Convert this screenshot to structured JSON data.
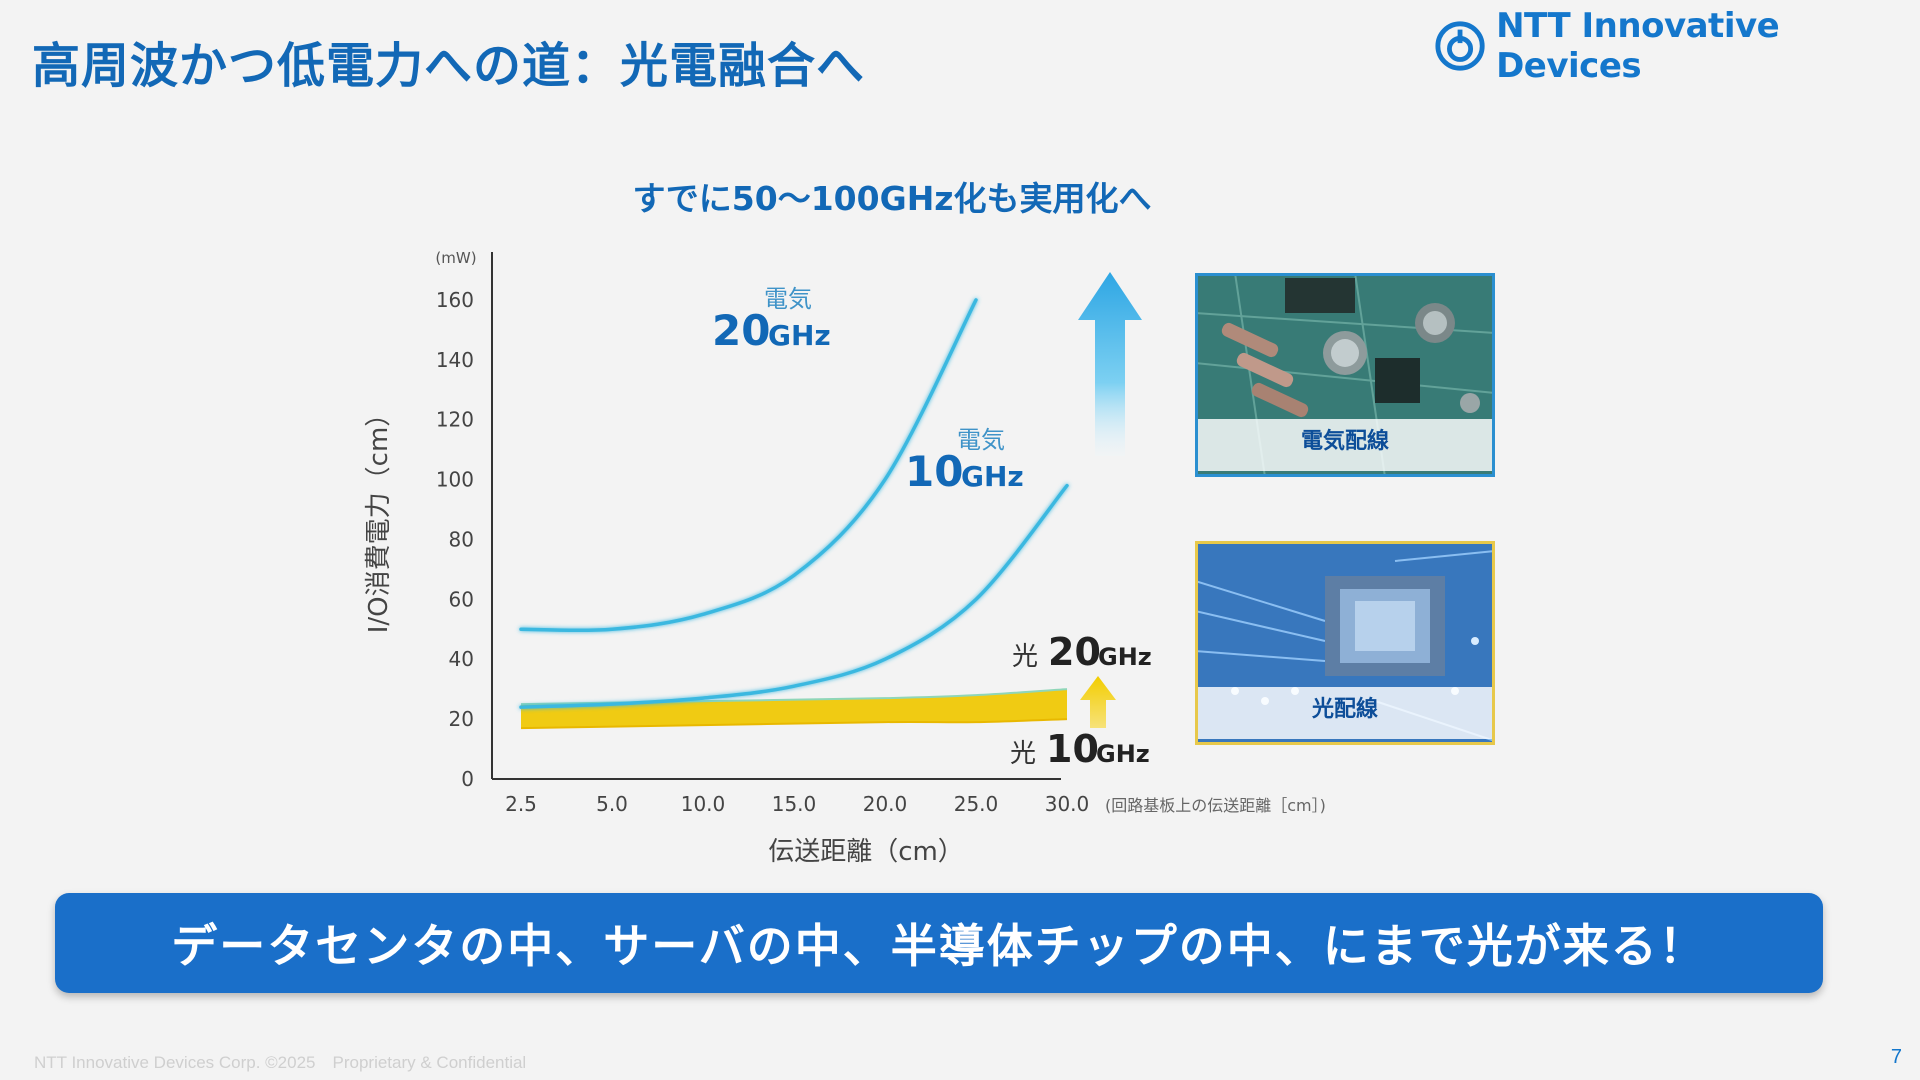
{
  "slide": {
    "title": "高周波かつ低電力への道：光電融合へ",
    "logo_text": "NTT Innovative Devices",
    "banner_text": "データセンタの中、サーバの中、半導体チップの中、にまで光が来る！",
    "footer_text": "NTT Innovative Devices Corp. ©2025　Proprietary & Confidential",
    "page_number": "7"
  },
  "photos": {
    "electrical_label": "電気配線",
    "optical_label": "光配線"
  },
  "chart_data": {
    "type": "line",
    "subtitle": "すでに50～100GHz化も実用化へ",
    "ylabel": "I/O消費電力（cm）",
    "y_unit": "(mW)",
    "xlabel": "伝送距離（cm）",
    "x_note": "(回路基板上の伝送距離［cm］)",
    "x_ticks": [
      "2.5",
      "5.0",
      "10.0",
      "15.0",
      "20.0",
      "25.0",
      "30.0"
    ],
    "y_ticks": [
      0,
      20,
      40,
      60,
      80,
      100,
      120,
      140,
      160
    ],
    "ylim": [
      0,
      176
    ],
    "grid": false,
    "series": [
      {
        "name": "電気 20GHz",
        "label_top": "電気",
        "label_main": "20",
        "label_unit": "GHz",
        "color": "#3ab8e0",
        "points": [
          [
            2.5,
            50
          ],
          [
            5.0,
            50
          ],
          [
            10.0,
            55
          ],
          [
            15.0,
            68
          ],
          [
            20.0,
            100
          ],
          [
            25.0,
            160
          ]
        ]
      },
      {
        "name": "電気 10GHz",
        "label_top": "電気",
        "label_main": "10",
        "label_unit": "GHz",
        "color": "#3ab8e0",
        "points": [
          [
            2.5,
            24
          ],
          [
            5.0,
            25
          ],
          [
            10.0,
            27
          ],
          [
            15.0,
            31
          ],
          [
            20.0,
            40
          ],
          [
            25.0,
            60
          ],
          [
            30.0,
            98
          ]
        ]
      },
      {
        "name": "光 20GHz",
        "label_prefix": "光",
        "label_main": "20",
        "label_unit": "GHz",
        "color": "#f0c800",
        "points": [
          [
            2.5,
            25
          ],
          [
            10.0,
            26
          ],
          [
            20.0,
            27
          ],
          [
            25.0,
            28
          ],
          [
            30.0,
            30
          ]
        ]
      },
      {
        "name": "光 10GHz",
        "label_prefix": "光",
        "label_main": "10",
        "label_unit": "GHz",
        "color": "#f0c800",
        "points": [
          [
            2.5,
            17
          ],
          [
            10.0,
            18
          ],
          [
            20.0,
            19
          ],
          [
            25.0,
            19
          ],
          [
            30.0,
            20
          ]
        ]
      }
    ]
  }
}
